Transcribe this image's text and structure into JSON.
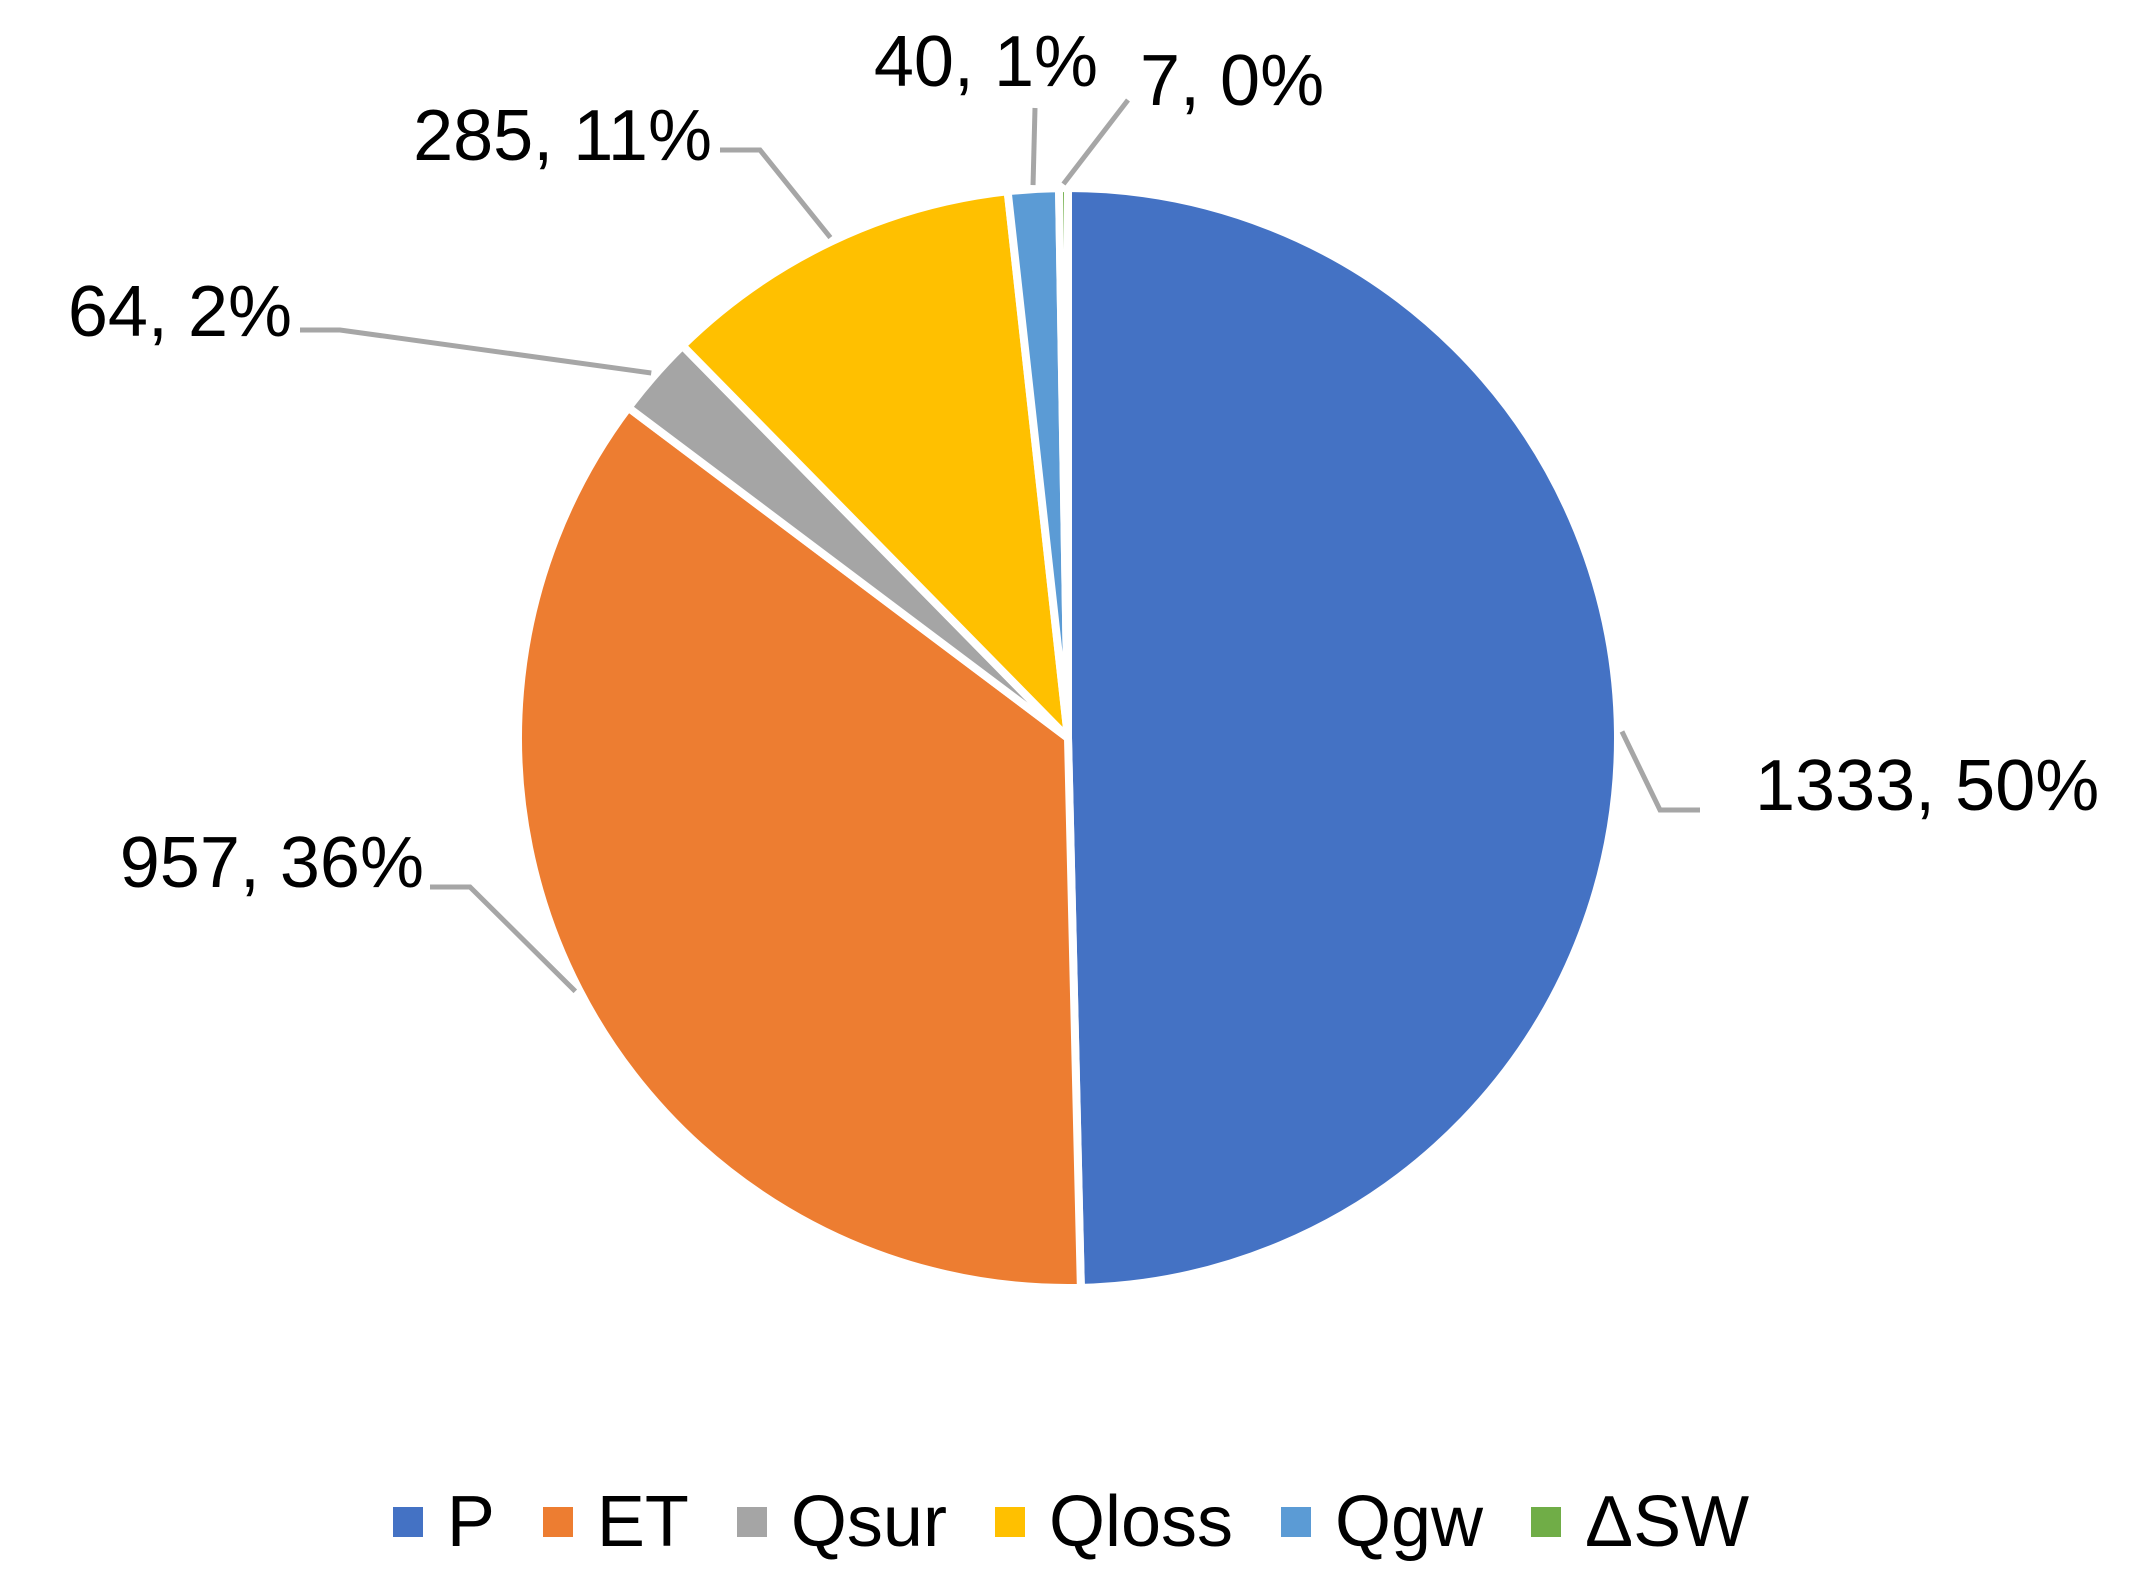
{
  "chart_data": {
    "type": "pie",
    "title": "",
    "legend_position": "bottom",
    "slices": [
      {
        "name": "P",
        "value": 1333,
        "percent": 50,
        "label": "1333, 50%",
        "color": "#4472C4"
      },
      {
        "name": "ET",
        "value": 957,
        "percent": 36,
        "label": "957, 36%",
        "color": "#ED7D31"
      },
      {
        "name": "Qsur",
        "value": 64,
        "percent": 2,
        "label": "64, 2%",
        "color": "#A5A5A5"
      },
      {
        "name": "Qloss",
        "value": 285,
        "percent": 11,
        "label": "285, 11%",
        "color": "#FFC000"
      },
      {
        "name": "Qgw",
        "value": 40,
        "percent": 1,
        "label": "40, 1%",
        "color": "#5B9BD5"
      },
      {
        "name": "ΔSW",
        "value": 7,
        "percent": 0,
        "label": "7, 0%",
        "color": "#70AD47"
      }
    ]
  }
}
